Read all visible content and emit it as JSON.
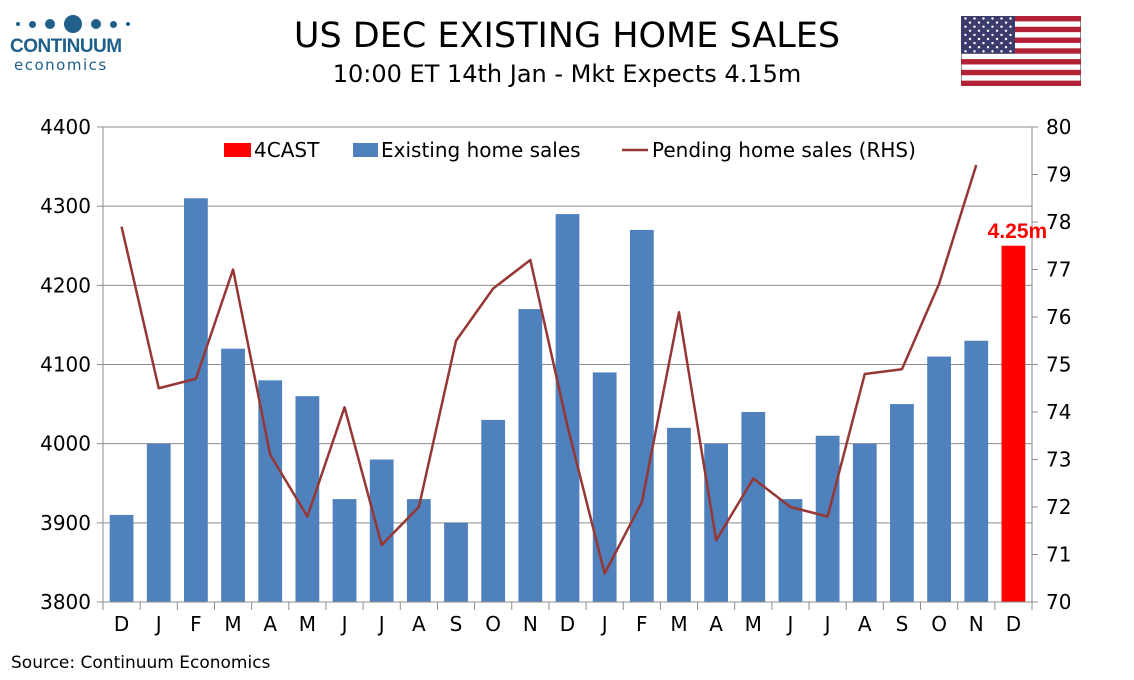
{
  "logo": {
    "name": "CONTINUUM",
    "sub": "economics",
    "color": "#1f5f8b"
  },
  "header": {
    "title": "US DEC EXISTING HOME SALES",
    "subtitle": "10:00 ET 14th Jan - Mkt Expects 4.15m"
  },
  "flag_icon": "us-flag-icon",
  "footer": {
    "source": "Source: Continuum Economics"
  },
  "chart_data": {
    "type": "bar",
    "title": "US DEC EXISTING HOME SALES",
    "subtitle": "10:00 ET 14th Jan - Mkt Expects 4.15m",
    "categories": [
      "D",
      "J",
      "F",
      "M",
      "A",
      "M",
      "J",
      "J",
      "A",
      "S",
      "O",
      "N",
      "D",
      "J",
      "F",
      "M",
      "A",
      "M",
      "J",
      "J",
      "A",
      "S",
      "O",
      "N",
      "D"
    ],
    "left_axis": {
      "label": "",
      "ylim": [
        3800,
        4400
      ],
      "ticks": [
        "3800",
        "3900",
        "4000",
        "4100",
        "4200",
        "4300",
        "4400"
      ]
    },
    "right_axis": {
      "label": "RHS",
      "ylim": [
        70,
        80
      ],
      "ticks": [
        "70",
        "71",
        "72",
        "73",
        "74",
        "75",
        "76",
        "77",
        "78",
        "79",
        "80"
      ]
    },
    "grid": true,
    "legend_position": "top",
    "series": [
      {
        "name": "4CAST",
        "type": "bar",
        "axis": "left",
        "color": "#ff0000",
        "values": [
          null,
          null,
          null,
          null,
          null,
          null,
          null,
          null,
          null,
          null,
          null,
          null,
          null,
          null,
          null,
          null,
          null,
          null,
          null,
          null,
          null,
          null,
          null,
          null,
          4250
        ]
      },
      {
        "name": "Existing home sales",
        "type": "bar",
        "axis": "left",
        "color": "#4f81bd",
        "values": [
          3910,
          4000,
          4310,
          4120,
          4080,
          4060,
          3930,
          3980,
          3930,
          3900,
          4030,
          4170,
          4290,
          4090,
          4270,
          4020,
          4000,
          4040,
          3930,
          4010,
          4000,
          4050,
          4110,
          4130,
          null
        ]
      },
      {
        "name": "Pending home sales (RHS)",
        "type": "line",
        "axis": "right",
        "color": "#953735",
        "values": [
          77.9,
          74.5,
          74.7,
          77.0,
          73.1,
          71.8,
          74.1,
          71.2,
          72.0,
          75.5,
          76.6,
          77.2,
          73.7,
          70.6,
          72.1,
          76.1,
          71.3,
          72.6,
          72.0,
          71.8,
          74.8,
          74.9,
          76.7,
          79.2,
          null
        ]
      }
    ],
    "annotations": [
      {
        "text": "4.25m",
        "category_index": 24,
        "color": "#ff0000"
      }
    ]
  }
}
